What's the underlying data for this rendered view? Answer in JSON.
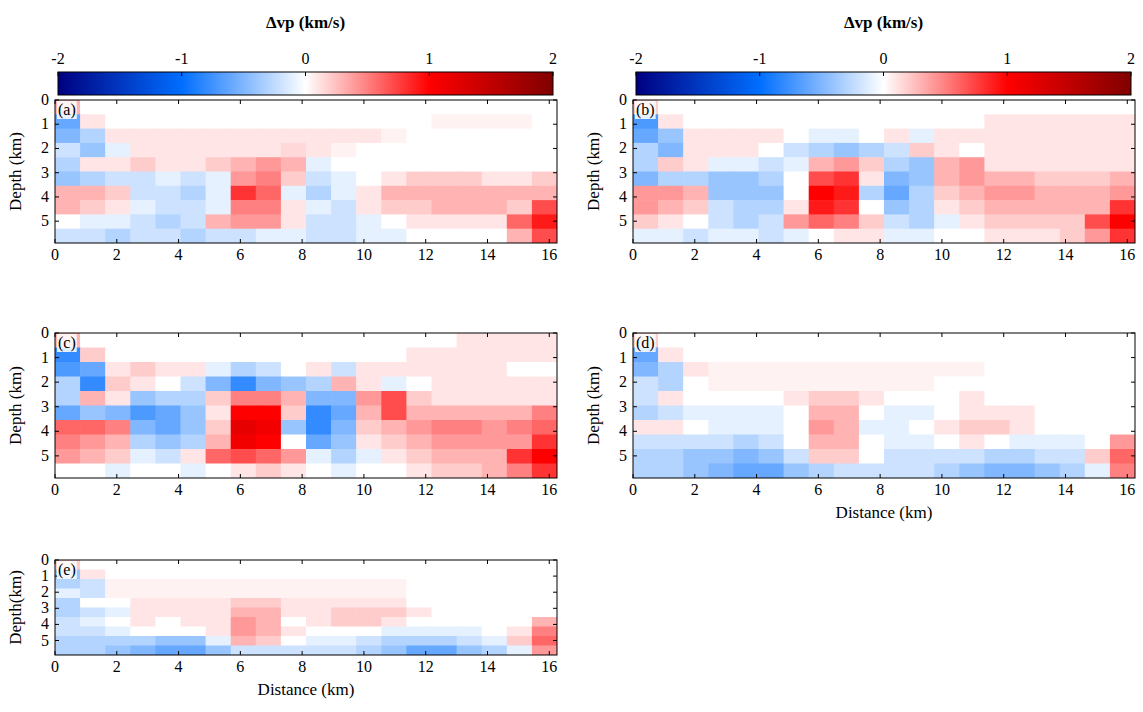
{
  "chart_data": [
    {
      "type": "heatmap",
      "panel_label": "(a)",
      "ylabel": "Depth (km)",
      "xlim": [
        0,
        16.25
      ],
      "ylim": [
        0,
        5.9
      ],
      "xticks": [
        0,
        2,
        4,
        6,
        8,
        10,
        12,
        14,
        16
      ],
      "yticks": [
        0,
        1,
        2,
        3,
        4,
        5
      ],
      "colorbar": {
        "label": "Δvp (km/s)",
        "range": [
          -2,
          2
        ],
        "ticks": [
          -2,
          -1,
          0,
          1,
          2
        ]
      },
      "cells": [
        [
          0.3,
          0,
          0,
          0,
          0,
          0,
          0,
          0,
          0,
          0,
          0,
          0,
          0,
          0,
          0,
          0,
          0,
          0,
          0,
          0
        ],
        [
          -0.6,
          0.1,
          0,
          0,
          0,
          0,
          0,
          0,
          0,
          0,
          0,
          0,
          0,
          0,
          0,
          0.05,
          0.05,
          0.05,
          0.05,
          0
        ],
        [
          -0.5,
          -0.3,
          0.1,
          0.1,
          0.1,
          0.1,
          0.1,
          0.1,
          0.1,
          0.1,
          0.1,
          0.1,
          0.1,
          0.05,
          0,
          0,
          0,
          0,
          0,
          0
        ],
        [
          -0.2,
          -0.4,
          -0.1,
          0.1,
          0.1,
          0.1,
          0.1,
          0.1,
          0.1,
          0.15,
          0.1,
          0.05,
          0,
          0,
          0,
          0,
          0,
          0,
          0,
          0
        ],
        [
          -0.3,
          0.1,
          0.1,
          0.2,
          0.1,
          0.1,
          0.2,
          0.3,
          0.4,
          0.3,
          -0.1,
          0,
          0,
          0,
          0,
          0,
          0,
          0,
          0,
          0
        ],
        [
          -0.4,
          -0.3,
          -0.2,
          -0.2,
          -0.1,
          -0.2,
          -0.1,
          0.4,
          0.5,
          0.2,
          -0.2,
          -0.1,
          0,
          0.1,
          0.2,
          0.2,
          0.2,
          0.1,
          0.1,
          0.2
        ],
        [
          0.3,
          0.3,
          0.2,
          -0.2,
          -0.2,
          -0.3,
          -0.1,
          0.8,
          0.6,
          -0.1,
          -0.3,
          -0.1,
          0.1,
          0.3,
          0.3,
          0.3,
          0.3,
          0.3,
          0.3,
          0.3
        ],
        [
          0.3,
          0.2,
          0.1,
          -0.1,
          -0.2,
          -0.2,
          -0.1,
          0.5,
          0.5,
          0.1,
          -0.1,
          -0.2,
          0.1,
          0.2,
          0.2,
          0.3,
          0.3,
          0.3,
          0.2,
          0.7
        ],
        [
          0,
          -0.1,
          -0.1,
          -0.2,
          -0.3,
          -0.2,
          0.3,
          0.4,
          0.4,
          0.1,
          -0.2,
          -0.2,
          -0.1,
          0,
          0.1,
          0.1,
          0.1,
          0.1,
          0.6,
          0.9
        ],
        [
          -0.2,
          -0.2,
          -0.3,
          -0.2,
          -0.2,
          -0.3,
          -0.2,
          -0.2,
          -0.1,
          -0.1,
          -0.2,
          -0.2,
          -0.1,
          -0.1,
          0,
          0,
          0,
          0,
          0.3,
          0.7
        ]
      ]
    },
    {
      "type": "heatmap",
      "panel_label": "(b)",
      "ylabel": "Depth (km)",
      "xlim": [
        0,
        16.25
      ],
      "ylim": [
        0,
        5.9
      ],
      "xticks": [
        0,
        2,
        4,
        6,
        8,
        10,
        12,
        14,
        16
      ],
      "yticks": [
        0,
        1,
        2,
        3,
        4,
        5
      ],
      "colorbar": {
        "label": "Δvp (km/s)",
        "range": [
          -2,
          2
        ],
        "ticks": [
          -2,
          -1,
          0,
          1,
          2
        ]
      },
      "cells": [
        [
          0.2,
          0,
          0,
          0,
          0,
          0,
          0,
          0,
          0,
          0,
          0,
          0,
          0,
          0,
          0,
          0,
          0,
          0,
          0,
          0
        ],
        [
          -0.7,
          0.1,
          0,
          0,
          0,
          0,
          0,
          0,
          0,
          0,
          0,
          0,
          0,
          0,
          0.1,
          0.1,
          0.1,
          0.1,
          0.1,
          0.1
        ],
        [
          -0.6,
          -0.4,
          0.1,
          0.1,
          0.1,
          0.1,
          0,
          -0.1,
          -0.1,
          0,
          0.1,
          -0.1,
          0.1,
          0.1,
          0.1,
          0.1,
          0.1,
          0.1,
          0.1,
          0.1
        ],
        [
          -0.3,
          -0.5,
          0.1,
          0.1,
          0.1,
          0,
          -0.2,
          -0.3,
          -0.4,
          -0.3,
          -0.2,
          0.2,
          0.1,
          0,
          0.1,
          0.1,
          0.1,
          0.1,
          0.1,
          0.1
        ],
        [
          -0.3,
          0.2,
          0.1,
          -0.1,
          -0.1,
          -0.2,
          -0.1,
          0.3,
          0.4,
          0.2,
          -0.3,
          -0.4,
          0.3,
          0.4,
          0.1,
          0.1,
          0.1,
          0.1,
          0.1,
          0.1
        ],
        [
          -0.5,
          -0.3,
          -0.3,
          -0.4,
          -0.4,
          -0.3,
          0,
          0.7,
          0.8,
          0.1,
          -0.5,
          -0.4,
          0.3,
          0.4,
          0.3,
          0.3,
          0.2,
          0.2,
          0.2,
          0.3
        ],
        [
          0.4,
          0.4,
          0.3,
          -0.4,
          -0.4,
          -0.4,
          0,
          1.0,
          0.9,
          -0.3,
          -0.6,
          -0.3,
          0.2,
          0.3,
          0.4,
          0.4,
          0.3,
          0.3,
          0.3,
          0.4
        ],
        [
          0.4,
          0.3,
          0.2,
          -0.2,
          -0.3,
          -0.3,
          0.1,
          0.9,
          0.8,
          0,
          -0.4,
          -0.3,
          0.1,
          0.2,
          0.3,
          0.3,
          0.3,
          0.3,
          0.3,
          0.8
        ],
        [
          0.2,
          0.1,
          0,
          -0.2,
          -0.3,
          -0.2,
          0.4,
          0.6,
          0.5,
          0.2,
          -0.2,
          -0.3,
          -0.1,
          0.1,
          0.2,
          0.2,
          0.2,
          0.2,
          0.7,
          1.0
        ],
        [
          -0.1,
          -0.1,
          -0.2,
          -0.1,
          -0.1,
          -0.2,
          -0.1,
          0,
          0.1,
          0.1,
          -0.1,
          -0.1,
          0,
          0,
          0.1,
          0.1,
          0.1,
          0.2,
          0.4,
          0.8
        ]
      ]
    },
    {
      "type": "heatmap",
      "panel_label": "(c)",
      "ylabel": "Depth (km)",
      "xlim": [
        0,
        16.25
      ],
      "ylim": [
        0,
        5.9
      ],
      "xticks": [
        0,
        2,
        4,
        6,
        8,
        10,
        12,
        14,
        16
      ],
      "yticks": [
        0,
        1,
        2,
        3,
        4,
        5
      ],
      "cells": [
        [
          0.3,
          0,
          0,
          0,
          0,
          0,
          0,
          0,
          0,
          0,
          0,
          0,
          0,
          0,
          0,
          0,
          0.1,
          0.1,
          0.1,
          0.1
        ],
        [
          -0.8,
          0.2,
          0,
          0,
          0,
          0,
          0,
          0,
          0,
          0,
          0,
          0,
          0,
          0,
          0.1,
          0.1,
          0.1,
          0.1,
          0.1,
          0.1
        ],
        [
          -0.7,
          -0.6,
          0.1,
          0.2,
          0.1,
          0.1,
          -0.1,
          -0.3,
          -0.2,
          0,
          0.1,
          -0.2,
          0.1,
          0.1,
          0.1,
          0.1,
          0.1,
          0.1,
          0,
          0
        ],
        [
          -0.3,
          -0.8,
          0.2,
          0.1,
          0,
          -0.2,
          -0.5,
          -0.8,
          -0.5,
          -0.4,
          -0.3,
          0.3,
          0.1,
          -0.1,
          0,
          0.1,
          0.1,
          0.1,
          0.1,
          0.1
        ],
        [
          -0.3,
          0.3,
          0.1,
          -0.4,
          -0.3,
          -0.3,
          0.2,
          0.5,
          0.5,
          0.3,
          -0.5,
          -0.5,
          0.4,
          0.7,
          0.2,
          0.1,
          0.1,
          0.1,
          0.1,
          0.1
        ],
        [
          -0.6,
          -0.4,
          -0.5,
          -0.7,
          -0.6,
          -0.4,
          0.1,
          1.0,
          1.0,
          0.2,
          -0.8,
          -0.6,
          0.3,
          0.7,
          0.3,
          0.3,
          0.3,
          0.3,
          0.3,
          0.5
        ],
        [
          0.6,
          0.6,
          0.5,
          -0.5,
          -0.6,
          -0.4,
          0.2,
          1.2,
          1.1,
          -0.4,
          -0.8,
          -0.5,
          0.2,
          0.3,
          0.4,
          0.5,
          0.5,
          0.4,
          0.5,
          0.6
        ],
        [
          0.5,
          0.4,
          0.3,
          -0.3,
          -0.4,
          -0.3,
          0.3,
          1.1,
          1.0,
          0,
          -0.6,
          -0.4,
          0.1,
          0.2,
          0.3,
          0.4,
          0.4,
          0.4,
          0.4,
          0.8
        ],
        [
          0.4,
          0.3,
          0.2,
          -0.1,
          -0.2,
          0.1,
          0.6,
          0.7,
          0.6,
          0.4,
          -0.1,
          -0.3,
          -0.1,
          0.1,
          0.2,
          0.3,
          0.3,
          0.3,
          0.8,
          1.0
        ],
        [
          0,
          0,
          -0.1,
          0,
          0,
          -0.1,
          0,
          0.1,
          0.2,
          0.1,
          0,
          -0.1,
          0,
          0,
          0.1,
          0.2,
          0.2,
          0.3,
          0.5,
          0.8
        ]
      ]
    },
    {
      "type": "heatmap",
      "panel_label": "(d)",
      "ylabel": "Depth (km)",
      "xlabel": "Distance (km)",
      "xlim": [
        0,
        16.25
      ],
      "ylim": [
        0,
        5.9
      ],
      "xticks": [
        0,
        2,
        4,
        6,
        8,
        10,
        12,
        14,
        16
      ],
      "yticks": [
        0,
        1,
        2,
        3,
        4,
        5
      ],
      "cells": [
        [
          0.2,
          0,
          0,
          0,
          0,
          0,
          0,
          0,
          0,
          0,
          0,
          0,
          0,
          0,
          0,
          0,
          0,
          0,
          0,
          0
        ],
        [
          -0.6,
          0.1,
          0,
          0,
          0,
          0,
          0,
          0,
          0,
          0,
          0,
          0,
          0,
          0,
          0,
          0,
          0,
          0,
          0,
          0
        ],
        [
          -0.5,
          -0.3,
          0.1,
          0.05,
          0.05,
          0.05,
          0.05,
          0.05,
          0.05,
          0.05,
          0.05,
          0.05,
          0.05,
          0.05,
          0,
          0,
          0,
          0,
          0,
          0
        ],
        [
          -0.2,
          -0.3,
          0,
          0.05,
          0.05,
          0.05,
          0.05,
          0.05,
          0.05,
          0.05,
          0.05,
          0.05,
          0,
          0,
          0,
          0,
          0,
          0,
          0,
          0
        ],
        [
          -0.2,
          0.1,
          0,
          0,
          0,
          0,
          0.1,
          0.2,
          0.2,
          0.1,
          0,
          0,
          0,
          0.1,
          0,
          0,
          0,
          0,
          0,
          0
        ],
        [
          -0.3,
          -0.2,
          -0.1,
          -0.1,
          -0.1,
          -0.1,
          0,
          0.3,
          0.3,
          0,
          -0.1,
          -0.1,
          0,
          0.1,
          0.1,
          0.1,
          0,
          0,
          0,
          0
        ],
        [
          0.1,
          0.1,
          0,
          -0.1,
          -0.1,
          -0.1,
          0,
          0.4,
          0.3,
          -0.1,
          -0.1,
          0,
          0.1,
          0.2,
          0.2,
          0.1,
          0,
          0,
          0,
          0
        ],
        [
          -0.2,
          -0.2,
          -0.2,
          -0.2,
          -0.3,
          -0.2,
          0,
          0.3,
          0.3,
          0,
          -0.1,
          -0.1,
          0,
          0.1,
          0,
          -0.1,
          -0.1,
          -0.1,
          0,
          0.4
        ],
        [
          -0.3,
          -0.3,
          -0.4,
          -0.4,
          -0.5,
          -0.4,
          -0.2,
          0.2,
          0.2,
          0,
          -0.2,
          -0.2,
          -0.2,
          -0.2,
          -0.3,
          -0.3,
          -0.2,
          -0.2,
          0.2,
          0.6
        ],
        [
          -0.3,
          -0.3,
          -0.4,
          -0.5,
          -0.6,
          -0.6,
          -0.4,
          -0.3,
          -0.2,
          -0.2,
          -0.2,
          -0.2,
          -0.3,
          -0.4,
          -0.5,
          -0.5,
          -0.4,
          -0.3,
          -0.1,
          0.5
        ]
      ]
    },
    {
      "type": "heatmap",
      "panel_label": "(e)",
      "ylabel": "Depth(km)",
      "xlabel": "Distance (km)",
      "xlim": [
        0,
        16.25
      ],
      "ylim": [
        0,
        5.9
      ],
      "xticks": [
        0,
        2,
        4,
        6,
        8,
        10,
        12,
        14,
        16
      ],
      "yticks": [
        0,
        1,
        2,
        3,
        4,
        5
      ],
      "cells": [
        [
          0.2,
          0,
          0,
          0,
          0,
          0,
          0,
          0,
          0,
          0,
          0,
          0,
          0,
          0,
          0,
          0,
          0,
          0,
          0,
          0
        ],
        [
          -0.4,
          0.1,
          0,
          0,
          0,
          0,
          0,
          0,
          0,
          0,
          0,
          0,
          0,
          0,
          0,
          0,
          0,
          0,
          0,
          0
        ],
        [
          -0.3,
          -0.2,
          0.05,
          0.05,
          0.05,
          0.05,
          0.05,
          0.05,
          0.05,
          0.05,
          0.05,
          0.05,
          0.05,
          0.05,
          0,
          0,
          0,
          0,
          0,
          0
        ],
        [
          -0.1,
          -0.2,
          0.05,
          0.05,
          0.05,
          0.05,
          0.05,
          0.05,
          0.05,
          0.05,
          0.05,
          0.05,
          0.05,
          0.05,
          0,
          0,
          0,
          0,
          0,
          0
        ],
        [
          -0.3,
          0,
          0,
          0.1,
          0.1,
          0.1,
          0.1,
          0.2,
          0.2,
          0.1,
          0.1,
          0.1,
          0.1,
          0.1,
          0,
          0,
          0,
          0,
          0,
          0
        ],
        [
          -0.3,
          -0.2,
          -0.1,
          0.1,
          0.1,
          0.1,
          0.1,
          0.3,
          0.3,
          0.1,
          0.1,
          0.2,
          0.2,
          0.2,
          0.1,
          0,
          0,
          0,
          0,
          0
        ],
        [
          -0.2,
          -0.1,
          0,
          0.1,
          0,
          0.1,
          0.1,
          0.4,
          0.3,
          0,
          0.1,
          0.2,
          0.2,
          0.1,
          0,
          0,
          0,
          0,
          0,
          0.3
        ],
        [
          -0.2,
          -0.2,
          -0.1,
          0,
          0,
          0,
          0.1,
          0.4,
          0.3,
          0.1,
          0,
          0,
          0,
          -0.1,
          -0.1,
          -0.1,
          -0.1,
          0,
          0.1,
          0.5
        ],
        [
          -0.3,
          -0.3,
          -0.3,
          -0.3,
          -0.4,
          -0.4,
          -0.1,
          0.3,
          0.2,
          0,
          -0.1,
          -0.1,
          -0.2,
          -0.3,
          -0.3,
          -0.3,
          -0.2,
          -0.1,
          0.2,
          0.6
        ],
        [
          -0.3,
          -0.3,
          -0.4,
          -0.5,
          -0.6,
          -0.6,
          -0.4,
          -0.2,
          -0.2,
          -0.2,
          -0.2,
          -0.2,
          -0.3,
          -0.4,
          -0.6,
          -0.6,
          -0.4,
          -0.3,
          -0.1,
          0.4
        ]
      ]
    }
  ]
}
